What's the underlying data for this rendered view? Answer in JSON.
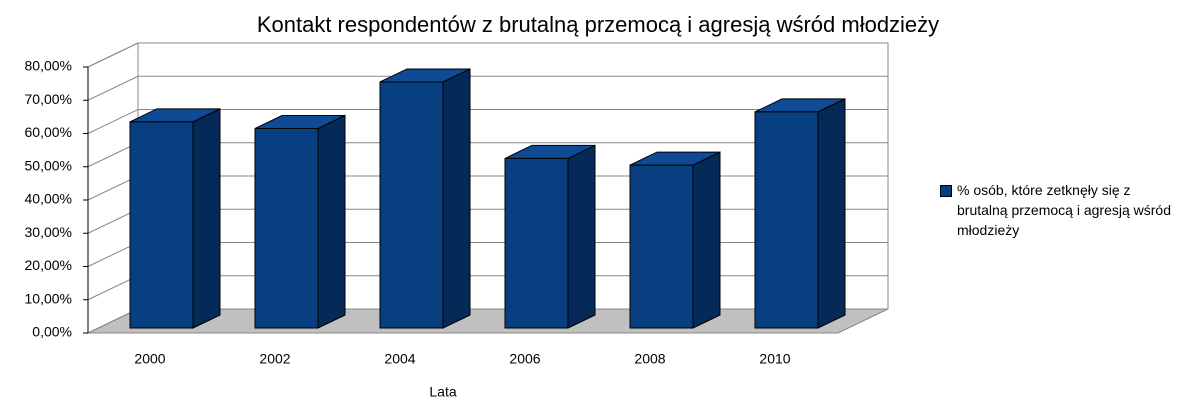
{
  "chart_data": {
    "type": "bar3d",
    "title": "Kontakt respondentów z brutalną przemocą i agresją wśród młodzieży",
    "xlabel": "Lata",
    "categories": [
      "2000",
      "2002",
      "2004",
      "2006",
      "2008",
      "2010"
    ],
    "series": [
      {
        "name": "% osób, które zetknęły się z brutalną przemocą i agresją wśród młodzieży",
        "color": "#083f80",
        "values": [
          62,
          60,
          74,
          51,
          49,
          65
        ]
      }
    ],
    "ylim": [
      0,
      80
    ],
    "yticks": [
      {
        "value": 0,
        "label": "0,00%"
      },
      {
        "value": 10,
        "label": "10,00%"
      },
      {
        "value": 20,
        "label": "20,00%"
      },
      {
        "value": 30,
        "label": "30,00%"
      },
      {
        "value": 40,
        "label": "40,00%"
      },
      {
        "value": 50,
        "label": "50,00%"
      },
      {
        "value": 60,
        "label": "60,00%"
      },
      {
        "value": 70,
        "label": "70,00%"
      },
      {
        "value": 80,
        "label": "80,00%"
      }
    ],
    "grid": true,
    "legend": "right"
  }
}
